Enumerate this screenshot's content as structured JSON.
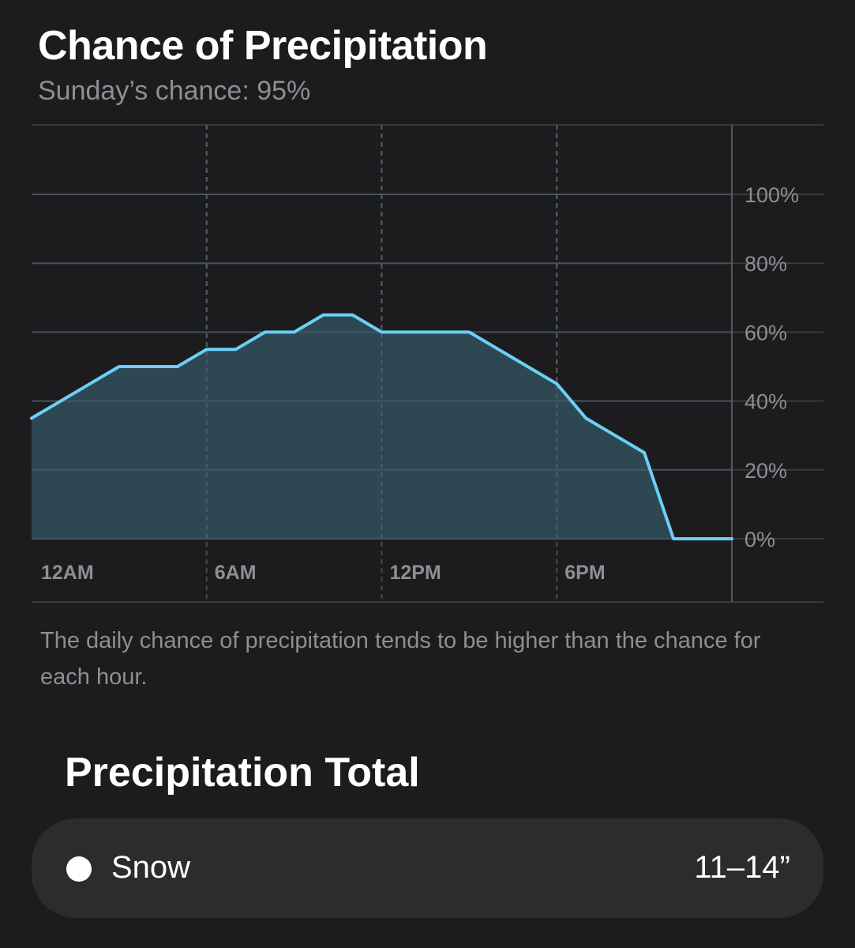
{
  "header": {
    "title": "Chance of Precipitation",
    "subtitle": "Sunday’s chance: 95%"
  },
  "chart_data": {
    "type": "area",
    "x_ticks": [
      "12AM",
      "6AM",
      "12PM",
      "6PM"
    ],
    "y_ticks": [
      "0%",
      "20%",
      "40%",
      "60%",
      "80%",
      "100%"
    ],
    "ylim": [
      0,
      100
    ],
    "xlim": [
      0,
      24
    ],
    "grid": true,
    "series": [
      {
        "x": [
          0,
          1,
          2,
          3,
          4,
          5,
          6,
          7,
          8,
          9,
          10,
          11,
          12,
          13,
          14,
          15,
          16,
          17,
          18,
          19,
          20,
          21,
          22,
          23,
          24
        ],
        "values": [
          35,
          40,
          45,
          50,
          50,
          50,
          55,
          55,
          60,
          60,
          65,
          65,
          60,
          60,
          60,
          60,
          55,
          50,
          45,
          35,
          30,
          25,
          0,
          0,
          0
        ]
      }
    ],
    "line_color": "#6ccff6",
    "fill_color": "#2e4a56"
  },
  "footnote": "The daily chance of precipitation tends to be higher than the chance for each hour.",
  "totals": {
    "heading": "Precipitation Total",
    "items": [
      {
        "label": "Snow",
        "value": "11–14”"
      }
    ]
  }
}
